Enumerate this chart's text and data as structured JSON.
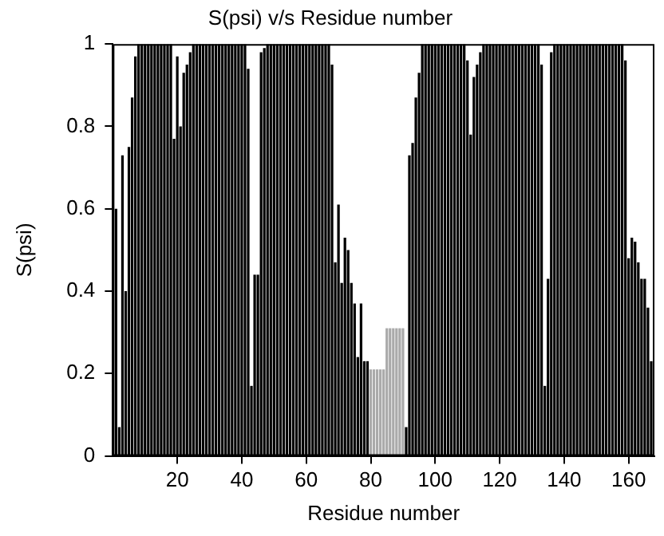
{
  "chart_data": {
    "type": "bar",
    "title": "S(psi) v/s Residue number",
    "xlabel": "Residue number",
    "ylabel": "S(psi)",
    "x": [
      1,
      2,
      3,
      4,
      5,
      6,
      7,
      8,
      9,
      10,
      11,
      12,
      13,
      14,
      15,
      16,
      17,
      18,
      19,
      20,
      21,
      22,
      23,
      24,
      25,
      26,
      27,
      28,
      29,
      30,
      31,
      32,
      33,
      34,
      35,
      36,
      37,
      38,
      39,
      40,
      41,
      42,
      43,
      44,
      45,
      46,
      47,
      48,
      49,
      50,
      51,
      52,
      53,
      54,
      55,
      56,
      57,
      58,
      59,
      60,
      61,
      62,
      63,
      64,
      65,
      66,
      67,
      68,
      69,
      70,
      71,
      72,
      73,
      74,
      75,
      76,
      77,
      78,
      79,
      80,
      81,
      82,
      83,
      84,
      85,
      86,
      87,
      88,
      89,
      90,
      91,
      92,
      93,
      94,
      95,
      96,
      97,
      98,
      99,
      100,
      101,
      102,
      103,
      104,
      105,
      106,
      107,
      108,
      109,
      110,
      111,
      112,
      113,
      114,
      115,
      116,
      117,
      118,
      119,
      120,
      121,
      122,
      123,
      124,
      125,
      126,
      127,
      128,
      129,
      130,
      131,
      132,
      133,
      134,
      135,
      136,
      137,
      138,
      139,
      140,
      141,
      142,
      143,
      144,
      145,
      146,
      147,
      148,
      149,
      150,
      151,
      152,
      153,
      154,
      155,
      156,
      157,
      158,
      159,
      160,
      161,
      162,
      163,
      164,
      165,
      166,
      167
    ],
    "values": [
      0.6,
      0.07,
      0.73,
      0.4,
      0.75,
      0.87,
      0.97,
      1,
      1,
      1,
      1,
      1,
      1,
      1,
      1,
      1,
      1,
      1,
      0.77,
      0.97,
      0.8,
      0.93,
      0.95,
      0.98,
      1,
      1,
      1,
      1,
      1,
      1,
      1,
      1,
      1,
      1,
      1,
      1,
      1,
      1,
      1,
      1,
      1,
      0.94,
      0.17,
      0.44,
      0.44,
      0.98,
      0.99,
      1,
      1,
      1,
      1,
      1,
      1,
      1,
      1,
      1,
      1,
      1,
      1,
      1,
      1,
      1,
      1,
      1,
      1,
      1,
      1,
      0.95,
      0.47,
      0.61,
      0.42,
      0.53,
      0.5,
      0.42,
      0.37,
      0.24,
      0.37,
      0.23,
      0.23,
      0.21,
      0.21,
      0.21,
      0.21,
      0.21,
      0.31,
      0.31,
      0.31,
      0.31,
      0.31,
      0.31,
      0.07,
      0.73,
      0.76,
      0.87,
      0.93,
      1,
      1,
      1,
      1,
      1,
      1,
      1,
      1,
      1,
      1,
      1,
      1,
      1,
      1,
      0.96,
      0.78,
      0.92,
      0.95,
      0.98,
      1,
      1,
      1,
      1,
      1,
      1,
      1,
      1,
      1,
      1,
      1,
      1,
      1,
      1,
      1,
      1,
      1,
      1,
      0.95,
      0.17,
      0.43,
      0.98,
      1,
      1,
      1,
      1,
      1,
      1,
      1,
      1,
      1,
      1,
      1,
      1,
      1,
      1,
      1,
      1,
      1,
      1,
      1,
      1,
      1,
      1,
      0.96,
      0.48,
      0.53,
      0.52,
      0.47,
      0.43,
      0.43,
      0.36,
      0.23
    ],
    "colors": [
      "#000000",
      "#000000",
      "#000000",
      "#000000",
      "#000000",
      "#000000",
      "#000000",
      "#000000",
      "#000000",
      "#000000",
      "#000000",
      "#000000",
      "#000000",
      "#000000",
      "#000000",
      "#000000",
      "#000000",
      "#000000",
      "#000000",
      "#000000",
      "#000000",
      "#000000",
      "#000000",
      "#000000",
      "#000000",
      "#000000",
      "#000000",
      "#000000",
      "#000000",
      "#000000",
      "#000000",
      "#000000",
      "#000000",
      "#000000",
      "#000000",
      "#000000",
      "#000000",
      "#000000",
      "#000000",
      "#000000",
      "#000000",
      "#000000",
      "#000000",
      "#000000",
      "#000000",
      "#000000",
      "#000000",
      "#000000",
      "#000000",
      "#000000",
      "#000000",
      "#000000",
      "#000000",
      "#000000",
      "#000000",
      "#000000",
      "#000000",
      "#000000",
      "#000000",
      "#000000",
      "#000000",
      "#000000",
      "#000000",
      "#000000",
      "#000000",
      "#000000",
      "#000000",
      "#000000",
      "#000000",
      "#000000",
      "#000000",
      "#000000",
      "#000000",
      "#000000",
      "#000000",
      "#000000",
      "#000000",
      "#000000",
      "#000000",
      "#aaaaaa",
      "#aaaaaa",
      "#aaaaaa",
      "#aaaaaa",
      "#aaaaaa",
      "#aaaaaa",
      "#aaaaaa",
      "#aaaaaa",
      "#aaaaaa",
      "#aaaaaa",
      "#aaaaaa",
      "#000000",
      "#000000",
      "#000000",
      "#000000",
      "#000000",
      "#000000",
      "#000000",
      "#000000",
      "#000000",
      "#000000",
      "#000000",
      "#000000",
      "#000000",
      "#000000",
      "#000000",
      "#000000",
      "#000000",
      "#000000",
      "#000000",
      "#000000",
      "#000000",
      "#000000",
      "#000000",
      "#000000",
      "#000000",
      "#000000",
      "#000000",
      "#000000",
      "#000000",
      "#000000",
      "#000000",
      "#000000",
      "#000000",
      "#000000",
      "#000000",
      "#000000",
      "#000000",
      "#000000",
      "#000000",
      "#000000",
      "#000000",
      "#000000",
      "#000000",
      "#000000",
      "#000000",
      "#000000",
      "#000000",
      "#000000",
      "#000000",
      "#000000",
      "#000000",
      "#000000",
      "#000000",
      "#000000",
      "#000000",
      "#000000",
      "#000000",
      "#000000",
      "#000000",
      "#000000",
      "#000000",
      "#000000",
      "#000000",
      "#000000",
      "#000000",
      "#000000",
      "#000000",
      "#000000",
      "#000000",
      "#000000",
      "#000000",
      "#000000",
      "#000000",
      "#000000",
      "#000000",
      "#000000",
      "#000000"
    ],
    "xlim": [
      0,
      168
    ],
    "xticks": [
      20,
      40,
      60,
      80,
      100,
      120,
      140,
      160
    ],
    "ylim": [
      0,
      1
    ],
    "yticks": [
      0,
      0.2,
      0.4,
      0.6,
      0.8,
      1
    ],
    "grid": false,
    "legend": false
  }
}
